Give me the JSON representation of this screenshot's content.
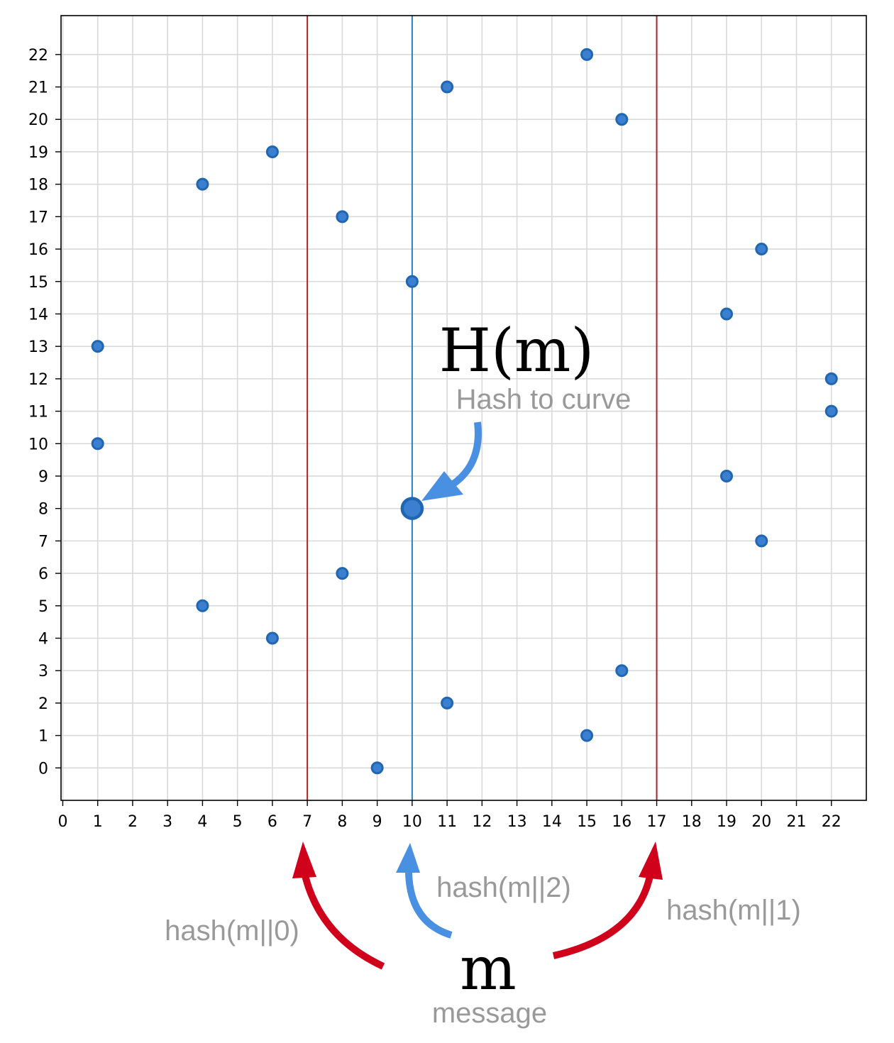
{
  "chart_data": {
    "type": "scatter",
    "title": "",
    "xlabel": "",
    "ylabel": "",
    "xlim": [
      -0.05,
      23
    ],
    "ylim": [
      -1,
      23.2
    ],
    "xticks": [
      0,
      1,
      2,
      3,
      4,
      5,
      6,
      7,
      8,
      9,
      10,
      11,
      12,
      13,
      14,
      15,
      16,
      17,
      18,
      19,
      20,
      21,
      22
    ],
    "yticks": [
      0,
      1,
      2,
      3,
      4,
      5,
      6,
      7,
      8,
      9,
      10,
      11,
      12,
      13,
      14,
      15,
      16,
      17,
      18,
      19,
      20,
      21,
      22
    ],
    "grid": true,
    "point_color": "#3a7fd0",
    "point_edge_color": "#2166b0",
    "points": [
      {
        "x": 1,
        "y": 13
      },
      {
        "x": 1,
        "y": 10
      },
      {
        "x": 4,
        "y": 18
      },
      {
        "x": 4,
        "y": 5
      },
      {
        "x": 6,
        "y": 19
      },
      {
        "x": 6,
        "y": 4
      },
      {
        "x": 8,
        "y": 17
      },
      {
        "x": 8,
        "y": 6
      },
      {
        "x": 9,
        "y": 0
      },
      {
        "x": 10,
        "y": 15
      },
      {
        "x": 11,
        "y": 21
      },
      {
        "x": 11,
        "y": 2
      },
      {
        "x": 15,
        "y": 22
      },
      {
        "x": 15,
        "y": 1
      },
      {
        "x": 16,
        "y": 20
      },
      {
        "x": 16,
        "y": 3
      },
      {
        "x": 19,
        "y": 14
      },
      {
        "x": 19,
        "y": 9
      },
      {
        "x": 20,
        "y": 16
      },
      {
        "x": 20,
        "y": 7
      },
      {
        "x": 22,
        "y": 12
      },
      {
        "x": 22,
        "y": 11
      }
    ],
    "highlight_point": {
      "x": 10,
      "y": 8
    },
    "vertical_lines": [
      {
        "x": 7,
        "color": "#b22222"
      },
      {
        "x": 10,
        "color": "#2a7fbf"
      },
      {
        "x": 17,
        "color": "#b22222"
      }
    ],
    "annotations": {
      "hm_label": "H(m)",
      "hash_to_curve": "Hash to curve",
      "hash0": "hash(m||0)",
      "hash1": "hash(m||1)",
      "hash2": "hash(m||2)",
      "m_label": "m",
      "message": "message"
    },
    "arrow_colors": {
      "red": "#d0021b",
      "blue": "#4a90e2"
    }
  }
}
